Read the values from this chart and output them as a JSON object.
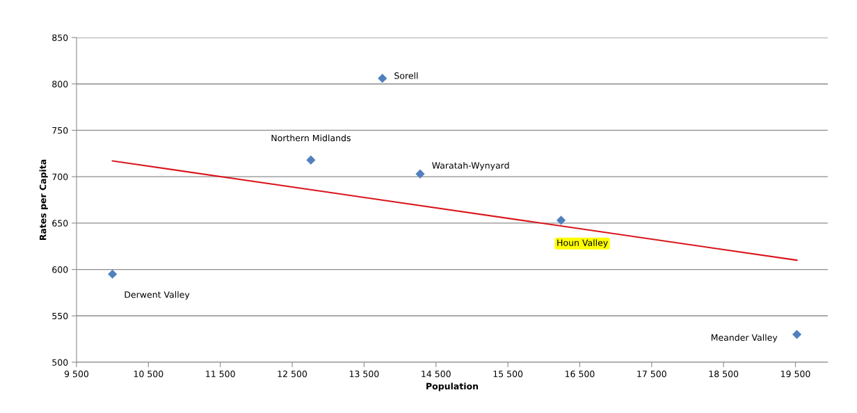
{
  "chart_data": {
    "type": "scatter",
    "xlabel": "Population",
    "ylabel": "Rates per Capita",
    "xlim": [
      9500,
      19950
    ],
    "ylim": [
      500,
      850
    ],
    "xticks": [
      {
        "value": 9500,
        "label": "9 500"
      },
      {
        "value": 10500,
        "label": "10 500"
      },
      {
        "value": 11500,
        "label": "11 500"
      },
      {
        "value": 12500,
        "label": "12 500"
      },
      {
        "value": 13500,
        "label": "13 500"
      },
      {
        "value": 14500,
        "label": "14 500"
      },
      {
        "value": 15500,
        "label": "15 500"
      },
      {
        "value": 16500,
        "label": "16 500"
      },
      {
        "value": 17500,
        "label": "17 500"
      },
      {
        "value": 18500,
        "label": "18 500"
      },
      {
        "value": 19500,
        "label": "19 500"
      }
    ],
    "yticks": [
      500,
      550,
      600,
      650,
      700,
      750,
      800,
      850
    ],
    "grid": "y",
    "marker": "diamond",
    "series": [
      {
        "color": "#4f81bd",
        "x": [
          10000,
          12760,
          13755,
          14280,
          16240,
          19520
        ],
        "values": [
          595,
          718,
          806,
          703,
          653,
          530
        ]
      },
      {
        "type": "line",
        "color": "#d9151b",
        "marker": "none",
        "x": [
          10000,
          19520
        ],
        "values": [
          717,
          610
        ]
      }
    ],
    "annotations": [
      {
        "text": "Derwent Valley",
        "x": 10000,
        "y": 595
      },
      {
        "text": "Northern Midlands",
        "x": 12760,
        "y": 718
      },
      {
        "text": "Sorell",
        "x": 13755,
        "y": 806
      },
      {
        "text": "Waratah-Wynyard",
        "x": 14280,
        "y": 703
      },
      {
        "text": "Houn Valley",
        "x": 16240,
        "y": 653
      },
      {
        "text": "Meander Valley",
        "x": 19520,
        "y": 530
      }
    ]
  }
}
